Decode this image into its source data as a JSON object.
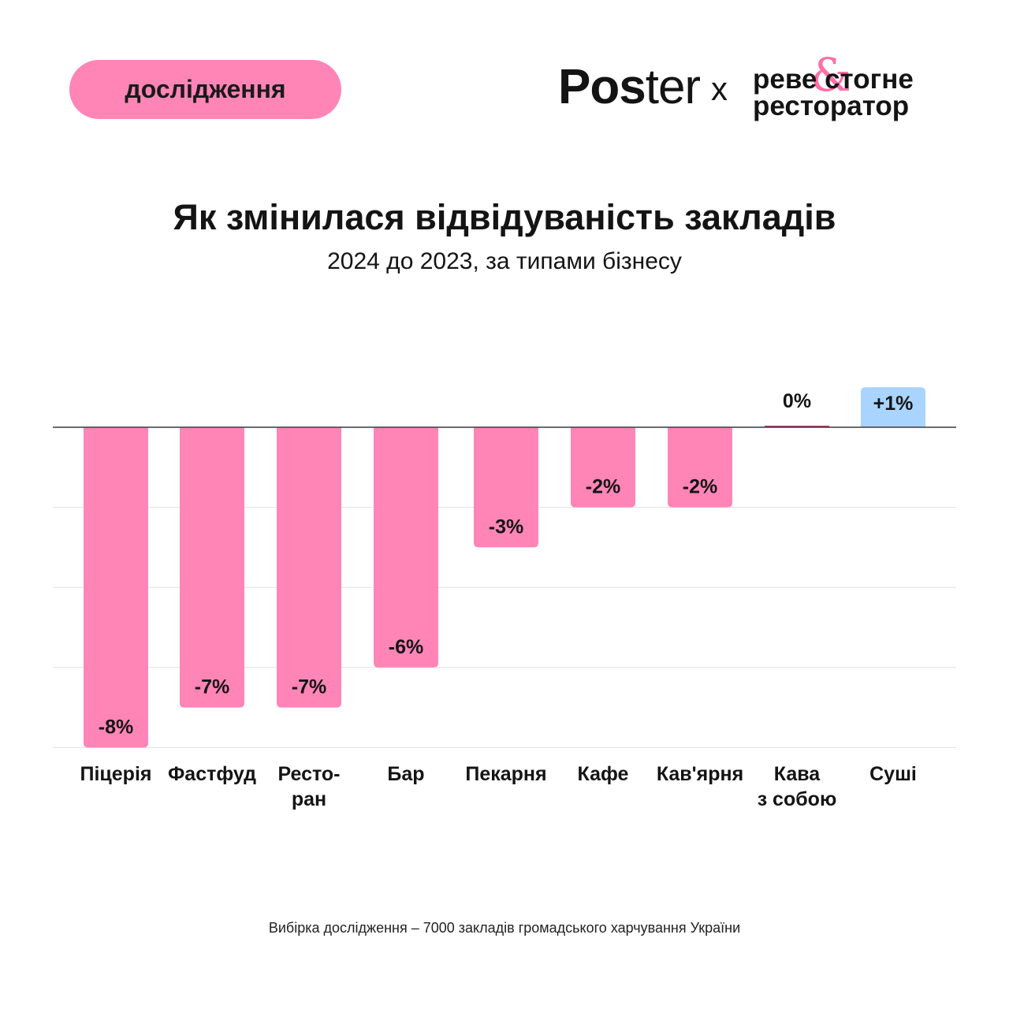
{
  "header": {
    "badge": "дослідження",
    "logo_poster_bold": "Pos",
    "logo_poster_regular": "ter",
    "logo_separator": "x",
    "partner_line1": "реве стогне",
    "partner_line2": "ресторатор",
    "partner_mark": "&"
  },
  "footnote": "Вибірка дослідження – 7000 закладів громадського харчування України",
  "colors": {
    "negative": "#ff85b7",
    "positive": "#a8d4ff",
    "zero": "#c73d78",
    "grid": "#e0e0e0",
    "axis": "#3a3a3a",
    "text": "#141414"
  },
  "chart_data": {
    "type": "bar",
    "title": "Як змінилася відвідуваність закладів",
    "subtitle": "2024 до 2023, за типами бізнесу",
    "categories": [
      [
        "Піцерія"
      ],
      [
        "Фастфуд"
      ],
      [
        "Ресто-",
        "ран"
      ],
      [
        "Бар"
      ],
      [
        "Пекарня"
      ],
      [
        "Кафе"
      ],
      [
        "Кав'ярня"
      ],
      [
        "Кава",
        "з собою"
      ],
      [
        "Суші"
      ]
    ],
    "values": [
      -8,
      -7,
      -7,
      -6,
      -3,
      -2,
      -2,
      0,
      1
    ],
    "labels": [
      "-8%",
      "-7%",
      "-7%",
      "-6%",
      "-3%",
      "-2%",
      "-2%",
      "0%",
      "+1%"
    ],
    "ylim": [
      -8,
      1
    ],
    "unit": "%",
    "grid": true,
    "legend": "none"
  }
}
